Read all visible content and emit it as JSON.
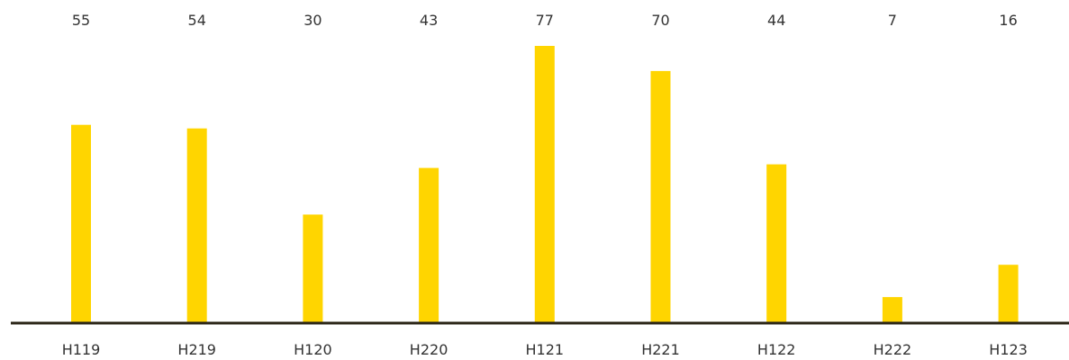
{
  "chart_data": {
    "type": "bar",
    "title": "",
    "xlabel": "",
    "ylabel": "",
    "categories": [
      "H119",
      "H219",
      "H120",
      "H220",
      "H121",
      "H221",
      "H122",
      "H222",
      "H123"
    ],
    "values": [
      55,
      54,
      30,
      43,
      77,
      70,
      44,
      7,
      16
    ],
    "ylim": [
      0,
      77
    ],
    "grid": false,
    "legend": "none",
    "data_labels_position": "top",
    "colors": {
      "bar": "#FFD500",
      "axis": "#2A2416",
      "text": "#333333"
    }
  }
}
